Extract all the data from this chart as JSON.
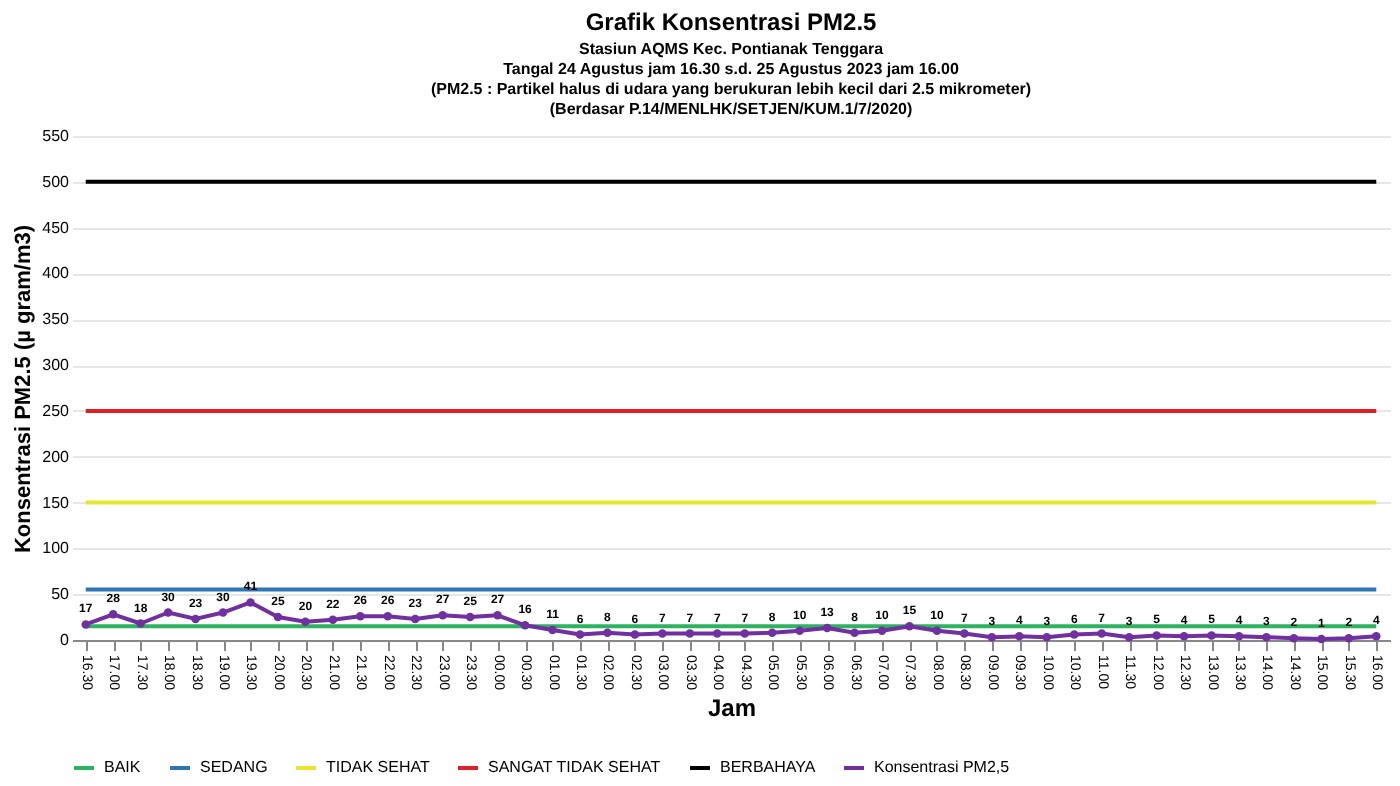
{
  "chart_data": {
    "type": "line",
    "title": "Grafik Konsentrasi PM2.5",
    "subtitle": [
      "Stasiun AQMS Kec. Pontianak Tenggara",
      "Tangal 24 Agustus jam 16.30 s.d. 25 Agustus 2023 jam 16.00"
    ],
    "annotations": [
      "(PM2.5 : Partikel halus di udara yang berukuran lebih kecil dari 2.5 mikrometer)",
      "(Berdasar P.14/MENLHK/SETJEN/KUM.1/7/2020)"
    ],
    "xlabel": "Jam",
    "ylabel": "Konsentrasi PM2.5 (µ gram/m3)",
    "categories": [
      "16.30",
      "17.00",
      "17.30",
      "18.00",
      "18.30",
      "19.00",
      "19.30",
      "20.00",
      "20.30",
      "21.00",
      "21.30",
      "22.00",
      "22.30",
      "23.00",
      "23.30",
      "00.00",
      "00.30",
      "01.00",
      "01.30",
      "02.00",
      "02.30",
      "03.00",
      "03.30",
      "04.00",
      "04.30",
      "05.00",
      "05.30",
      "06.00",
      "06.30",
      "07.00",
      "07.30",
      "08.00",
      "08.30",
      "09.00",
      "09.30",
      "10.00",
      "10.30",
      "11.00",
      "11.30",
      "12.00",
      "12.30",
      "13.00",
      "13.30",
      "14.00",
      "14.30",
      "15.00",
      "15.30",
      "16.00"
    ],
    "series": [
      {
        "name": "BAIK",
        "color": "#2db35f",
        "marker": "none",
        "values": [
          15,
          15,
          15,
          15,
          15,
          15,
          15,
          15,
          15,
          15,
          15,
          15,
          15,
          15,
          15,
          15,
          15,
          15,
          15,
          15,
          15,
          15,
          15,
          15,
          15,
          15,
          15,
          15,
          15,
          15,
          15,
          15,
          15,
          15,
          15,
          15,
          15,
          15,
          15,
          15,
          15,
          15,
          15,
          15,
          15,
          15,
          15,
          15
        ]
      },
      {
        "name": "SEDANG",
        "color": "#2e75b6",
        "marker": "none",
        "values": [
          55,
          55,
          55,
          55,
          55,
          55,
          55,
          55,
          55,
          55,
          55,
          55,
          55,
          55,
          55,
          55,
          55,
          55,
          55,
          55,
          55,
          55,
          55,
          55,
          55,
          55,
          55,
          55,
          55,
          55,
          55,
          55,
          55,
          55,
          55,
          55,
          55,
          55,
          55,
          55,
          55,
          55,
          55,
          55,
          55,
          55,
          55,
          55
        ]
      },
      {
        "name": "TIDAK SEHAT",
        "color": "#e6e62e",
        "marker": "none",
        "values": [
          150,
          150,
          150,
          150,
          150,
          150,
          150,
          150,
          150,
          150,
          150,
          150,
          150,
          150,
          150,
          150,
          150,
          150,
          150,
          150,
          150,
          150,
          150,
          150,
          150,
          150,
          150,
          150,
          150,
          150,
          150,
          150,
          150,
          150,
          150,
          150,
          150,
          150,
          150,
          150,
          150,
          150,
          150,
          150,
          150,
          150,
          150,
          150
        ]
      },
      {
        "name": "SANGAT TIDAK SEHAT",
        "color": "#e02020",
        "marker": "none",
        "values": [
          250,
          250,
          250,
          250,
          250,
          250,
          250,
          250,
          250,
          250,
          250,
          250,
          250,
          250,
          250,
          250,
          250,
          250,
          250,
          250,
          250,
          250,
          250,
          250,
          250,
          250,
          250,
          250,
          250,
          250,
          250,
          250,
          250,
          250,
          250,
          250,
          250,
          250,
          250,
          250,
          250,
          250,
          250,
          250,
          250,
          250,
          250,
          250
        ]
      },
      {
        "name": "BERBAHAYA",
        "color": "#000000",
        "marker": "none",
        "values": [
          500,
          500,
          500,
          500,
          500,
          500,
          500,
          500,
          500,
          500,
          500,
          500,
          500,
          500,
          500,
          500,
          500,
          500,
          500,
          500,
          500,
          500,
          500,
          500,
          500,
          500,
          500,
          500,
          500,
          500,
          500,
          500,
          500,
          500,
          500,
          500,
          500,
          500,
          500,
          500,
          500,
          500,
          500,
          500,
          500,
          500,
          500,
          500
        ]
      },
      {
        "name": "Konsentrasi PM2,5",
        "color": "#7030a0",
        "marker": "circle",
        "values": [
          17,
          28,
          18,
          30,
          23,
          30,
          41,
          25,
          20,
          22,
          26,
          26,
          23,
          27,
          25,
          27,
          16,
          11,
          6,
          8,
          6,
          7,
          7,
          7,
          7,
          8,
          10,
          13,
          8,
          10,
          15,
          10,
          7,
          3,
          4,
          3,
          6,
          7,
          3,
          5,
          4,
          5,
          4,
          3,
          2,
          1,
          2,
          4
        ],
        "value_labels": [
          "17",
          "28",
          "18",
          "30",
          "23",
          "30",
          "41",
          "25",
          "20",
          "22",
          "26",
          "26",
          "23",
          "27",
          "25",
          "27",
          "16",
          "11",
          "6",
          "8",
          "6",
          "7",
          "7",
          "7",
          "7",
          "8",
          "10",
          "13",
          "8",
          "10",
          "15",
          "10",
          "7",
          "3",
          "4",
          "3",
          "6",
          "7",
          "3",
          "5",
          "4",
          "5",
          "4",
          "3",
          "2",
          "1",
          "2",
          "4"
        ]
      }
    ],
    "ylim": [
      0,
      550
    ],
    "yticks": [
      0,
      50,
      100,
      150,
      200,
      250,
      300,
      350,
      400,
      450,
      500,
      550
    ],
    "grid": "y",
    "legend": "bottom",
    "line_style": "solid"
  }
}
